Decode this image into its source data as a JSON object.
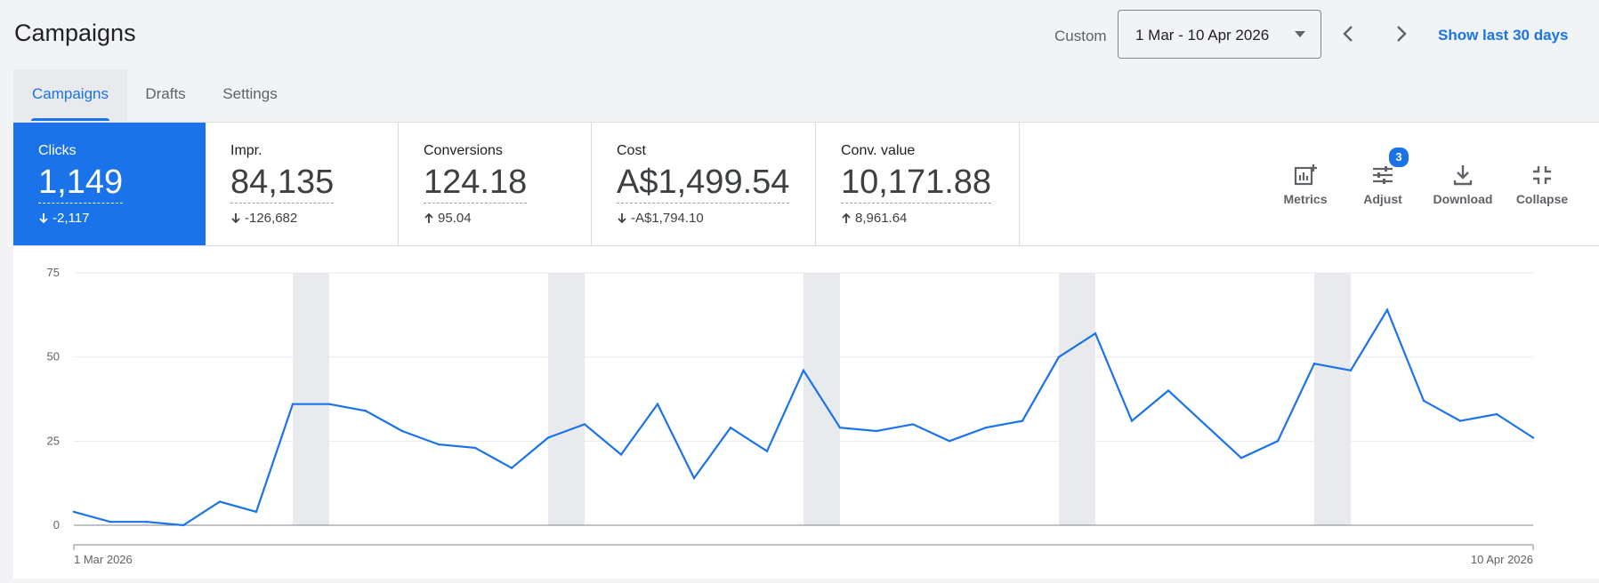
{
  "header": {
    "title": "Campaigns",
    "custom_label": "Custom",
    "date_range": "1 Mar - 10 Apr 2026",
    "show_last": "Show last 30 days"
  },
  "tabs": [
    {
      "label": "Campaigns",
      "active": true
    },
    {
      "label": "Drafts",
      "active": false
    },
    {
      "label": "Settings",
      "active": false
    }
  ],
  "metrics": [
    {
      "label": "Clicks",
      "value": "1,149",
      "delta": "-2,117",
      "direction": "down",
      "active": true
    },
    {
      "label": "Impr.",
      "value": "84,135",
      "delta": "-126,682",
      "direction": "down",
      "active": false
    },
    {
      "label": "Conversions",
      "value": "124.18",
      "delta": "95.04",
      "direction": "up",
      "active": false
    },
    {
      "label": "Cost",
      "value": "A$1,499.54",
      "delta": "-A$1,794.10",
      "direction": "down",
      "active": false
    },
    {
      "label": "Conv. value",
      "value": "10,171.88",
      "delta": "8,961.64",
      "direction": "up",
      "active": false
    }
  ],
  "tools": [
    {
      "label": "Metrics",
      "icon": "metrics-icon"
    },
    {
      "label": "Adjust",
      "icon": "tune-icon",
      "badge": "3"
    },
    {
      "label": "Download",
      "icon": "download-icon"
    },
    {
      "label": "Collapse",
      "icon": "collapse-icon"
    }
  ],
  "colors": {
    "accent": "#1a73e8",
    "line": "#1a73e8",
    "weekend_band": "#e8eaed"
  },
  "chart_data": {
    "type": "line",
    "series": [
      {
        "values": [
          4,
          1,
          1,
          0,
          7,
          4,
          36,
          36,
          34,
          28,
          24,
          23,
          17,
          26,
          30,
          21,
          36,
          14,
          29,
          22,
          46,
          29,
          28,
          30,
          25,
          29,
          31,
          50,
          57,
          31,
          40,
          30,
          20,
          25,
          48,
          46,
          64,
          37,
          31,
          33,
          26
        ]
      }
    ],
    "x_start_label": "1 Mar 2026",
    "x_end_label": "10 Apr 2026",
    "yticks": [
      0,
      25,
      50,
      75
    ],
    "ylim": [
      0,
      75
    ],
    "highlight_bands": [
      [
        6,
        7
      ],
      [
        13,
        14
      ],
      [
        20,
        21
      ],
      [
        27,
        28
      ],
      [
        34,
        35
      ]
    ],
    "grid": true
  }
}
